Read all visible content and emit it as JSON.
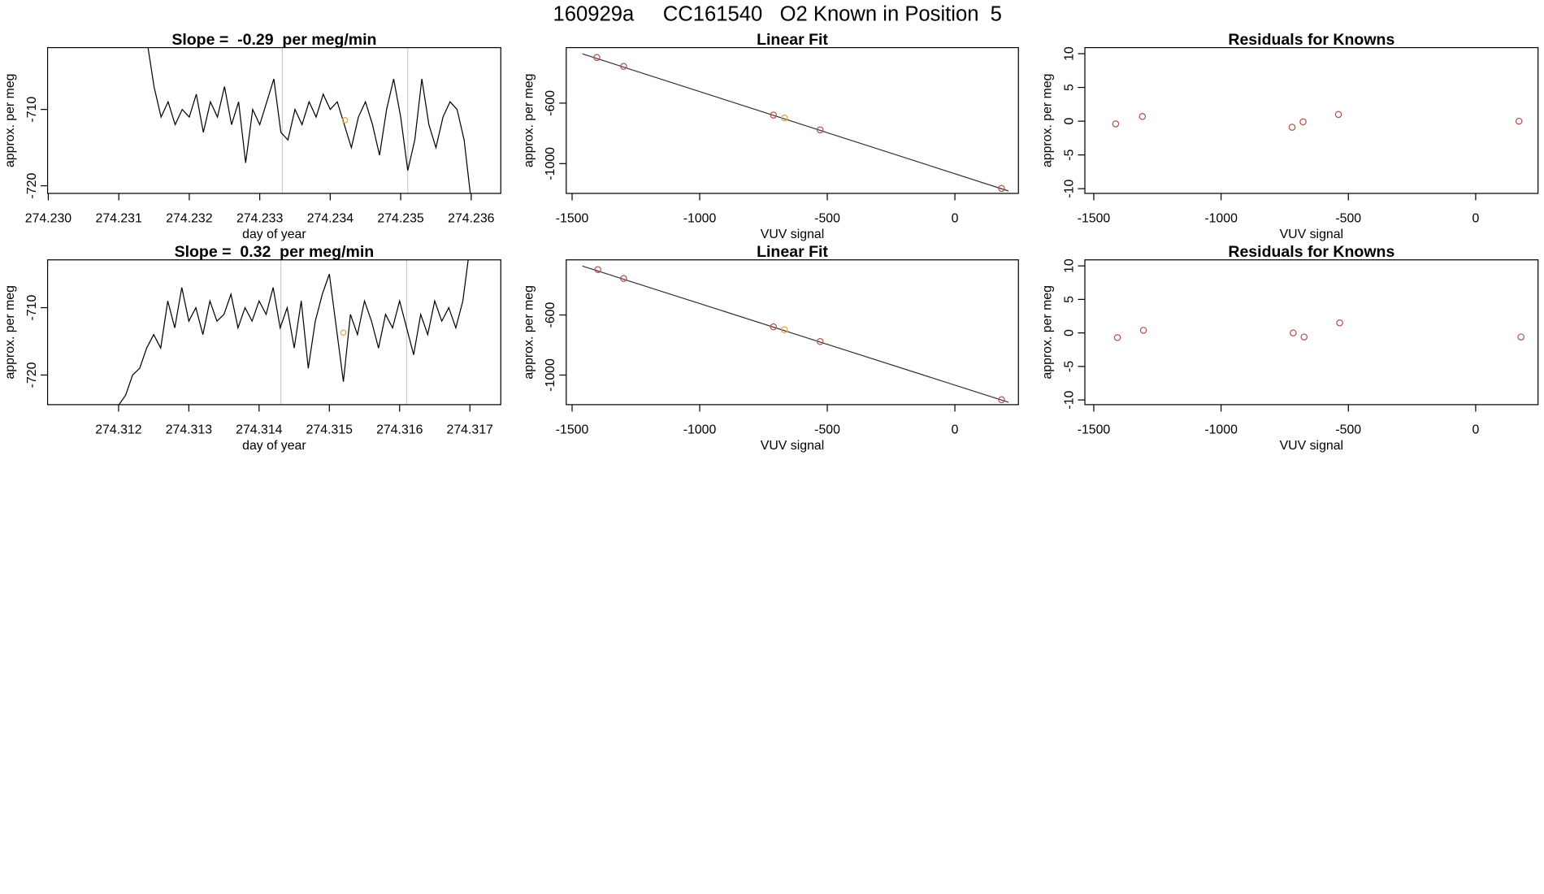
{
  "title": "160929a     CC161540   O2 Known in Position  5",
  "chart_data": [
    {
      "type": "line",
      "title": "Slope =  -0.29  per meg/min",
      "x_label": "day of year",
      "y_label": "approx. per meg",
      "x": [
        274.2314,
        274.2315,
        274.2316,
        274.2317,
        274.2318,
        274.2319,
        274.232,
        274.2321,
        274.2322,
        274.2323,
        274.2324,
        274.2325,
        274.2326,
        274.2327,
        274.2328,
        274.2329,
        274.233,
        274.2331,
        274.2332,
        274.2333,
        274.2334,
        274.2335,
        274.2336,
        274.2337,
        274.2338,
        274.2339,
        274.234,
        274.2341,
        274.2342,
        274.2343,
        274.2344,
        274.2345,
        274.2346,
        274.2347,
        274.2348,
        274.2349,
        274.235,
        274.2351,
        274.2352,
        274.2353,
        274.2354,
        274.2355,
        274.2356,
        274.2357,
        274.2358,
        274.2359,
        274.236
      ],
      "values": [
        -701,
        -707,
        -711,
        -709,
        -712,
        -710,
        -711,
        -708,
        -713,
        -709,
        -711,
        -707,
        -712,
        -709,
        -717,
        -710,
        -712,
        -709,
        -706,
        -713,
        -714,
        -710,
        -712,
        -709,
        -711,
        -708,
        -710,
        -709,
        -712,
        -715,
        -711,
        -709,
        -712,
        -716,
        -710,
        -706,
        -711,
        -718,
        -714,
        -706,
        -712,
        -715,
        -711,
        -709,
        -710,
        -714,
        -722
      ],
      "color": "#000000",
      "highlight": {
        "x": [
          274.23421
        ],
        "y": [
          -711.4
        ],
        "color": "#e8a33d"
      },
      "vlines": [
        274.23332,
        274.2351
      ],
      "vline_color": "#cccccc",
      "xlim": [
        274.22999,
        274.23642
      ],
      "xticks": [
        {
          "value": 274.23,
          "label": "274.230"
        },
        274.231,
        274.232,
        274.233,
        274.234,
        274.235,
        274.236
      ],
      "ylim": [
        -721.0,
        -701.9
      ],
      "yticks": [
        -720,
        -710
      ]
    },
    {
      "type": "scatter",
      "title": "Linear Fit",
      "x_label": "VUV signal",
      "y_label": "approx. per meg",
      "x": [
        -1403,
        -1298,
        -711,
        -668,
        -528,
        183
      ],
      "values": [
        -298,
        -357,
        -679,
        -698,
        -777,
        -1164
      ],
      "colors": [
        "#b5504b",
        "#b5504b",
        "#b5504b",
        "#e8a33d",
        "#b5504b",
        "#b5504b"
      ],
      "fit": {
        "x": [
          -1460,
          210
        ],
        "y": [
          -274,
          -1181
        ],
        "color": "#333333"
      },
      "xlim": [
        -1523,
        249
      ],
      "xticks": [
        -1500,
        -1000,
        -500,
        0
      ],
      "ylim": [
        -1197,
        -233
      ],
      "yticks": [
        -1000,
        -600
      ]
    },
    {
      "type": "scatter",
      "title": "Residuals for Knowns",
      "x_label": "VUV signal",
      "y_label": "approx. per meg",
      "x": [
        -1414,
        -1309,
        -721,
        -678,
        -539,
        170
      ],
      "values": [
        -0.4,
        0.7,
        -0.9,
        -0.1,
        1.0,
        0
      ],
      "colors": [
        "#b5504b",
        "#b5504b",
        "#b5504b",
        "#b5504b",
        "#b5504b",
        "#b5504b"
      ],
      "xlim": [
        -1535,
        245
      ],
      "xticks": [
        -1500,
        -1000,
        -500,
        0
      ],
      "ylim": [
        -10.7,
        10.9
      ],
      "yticks": [
        -10,
        -5,
        0,
        5,
        10
      ]
    },
    {
      "type": "line",
      "title": "Slope =  0.32  per meg/min",
      "x_label": "day of year",
      "y_label": "approx. per meg",
      "x": [
        274.312,
        274.3121,
        274.3122,
        274.3123,
        274.3124,
        274.3125,
        274.3126,
        274.3127,
        274.3128,
        274.3129,
        274.313,
        274.3131,
        274.3132,
        274.3133,
        274.3134,
        274.3135,
        274.3136,
        274.3137,
        274.3138,
        274.3139,
        274.314,
        274.3141,
        274.3142,
        274.3143,
        274.3144,
        274.3145,
        274.3146,
        274.3147,
        274.3148,
        274.3149,
        274.315,
        274.3151,
        274.3152,
        274.3153,
        274.3154,
        274.3155,
        274.3156,
        274.3157,
        274.3158,
        274.3159,
        274.316,
        274.3161,
        274.3162,
        274.3163,
        274.3164,
        274.3165,
        274.3166,
        274.3167,
        274.3168,
        274.3169,
        274.317
      ],
      "values": [
        -724.5,
        -723,
        -720,
        -719,
        -716,
        -714,
        -716,
        -709,
        -713,
        -707,
        -712,
        -710,
        -714,
        -709,
        -712,
        -711,
        -708,
        -713,
        -710,
        -712,
        -709,
        -711,
        -707,
        -713,
        -710,
        -716,
        -709,
        -719,
        -712,
        -708,
        -705,
        -713,
        -721,
        -711,
        -714,
        -709,
        -712,
        -716,
        -711,
        -713,
        -709,
        -713,
        -717,
        -711,
        -714,
        -709,
        -712,
        -710,
        -713,
        -709,
        -701
      ],
      "color": "#000000",
      "highlight": {
        "x": [
          274.3152
        ],
        "y": [
          -713.7
        ],
        "color": "#e8a33d"
      },
      "vlines": [
        274.31431,
        274.3161
      ],
      "vline_color": "#cccccc",
      "xlim": [
        274.31099,
        274.31744
      ],
      "xticks": [
        274.312,
        274.313,
        274.314,
        274.315,
        274.316,
        274.317
      ],
      "ylim": [
        -724.4,
        -702.9
      ],
      "yticks": [
        -720,
        -710
      ]
    },
    {
      "type": "scatter",
      "title": "Linear Fit",
      "x_label": "VUV signal",
      "y_label": "approx. per meg",
      "x": [
        -1399,
        -1298,
        -711,
        -668,
        -528,
        183
      ],
      "values": [
        -298,
        -357,
        -679,
        -698,
        -777,
        -1164
      ],
      "colors": [
        "#b5504b",
        "#b5504b",
        "#b5504b",
        "#e8a33d",
        "#b5504b",
        "#b5504b"
      ],
      "fit": {
        "x": [
          -1460,
          210
        ],
        "y": [
          -274,
          -1181
        ],
        "color": "#333333"
      },
      "xlim": [
        -1523,
        249
      ],
      "xticks": [
        -1500,
        -1000,
        -500,
        0
      ],
      "ylim": [
        -1197,
        -233
      ],
      "yticks": [
        -1000,
        -600
      ]
    },
    {
      "type": "scatter",
      "title": "Residuals for Knowns",
      "x_label": "VUV signal",
      "y_label": "approx. per meg",
      "x": [
        -1407,
        -1305,
        -717,
        -674,
        -534,
        178
      ],
      "values": [
        -0.7,
        0.4,
        0,
        -0.6,
        1.5,
        -0.6
      ],
      "colors": [
        "#b5504b",
        "#b5504b",
        "#b5504b",
        "#b5504b",
        "#b5504b",
        "#b5504b"
      ],
      "xlim": [
        -1535,
        245
      ],
      "xticks": [
        -1500,
        -1000,
        -500,
        0
      ],
      "ylim": [
        -10.7,
        10.9
      ],
      "yticks": [
        -10,
        -5,
        0,
        5,
        10
      ]
    }
  ]
}
